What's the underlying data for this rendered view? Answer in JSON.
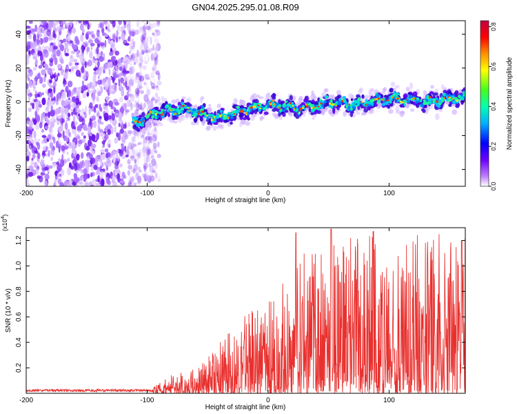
{
  "title": "GN04.2025.295.01.08.R09",
  "chart_data": [
    {
      "type": "heatmap",
      "xlabel": "Height of straight line (km)",
      "ylabel": "Frequency (Hz)",
      "xlim": [
        -200,
        163
      ],
      "ylim": [
        -50,
        48
      ],
      "xticks": [
        -200,
        -100,
        0,
        100
      ],
      "yticks": [
        -40,
        -20,
        0,
        20,
        40
      ],
      "ridge_trend": [
        {
          "x": -110,
          "y": -12
        },
        {
          "x": -90,
          "y": -6
        },
        {
          "x": -70,
          "y": -4
        },
        {
          "x": -40,
          "y": -10
        },
        {
          "x": -20,
          "y": -5
        },
        {
          "x": 0,
          "y": -2
        },
        {
          "x": 30,
          "y": -4
        },
        {
          "x": 50,
          "y": 0
        },
        {
          "x": 70,
          "y": -2
        },
        {
          "x": 100,
          "y": 2
        },
        {
          "x": 130,
          "y": 0
        },
        {
          "x": 163,
          "y": 3
        }
      ],
      "noise_region_x": [
        -200,
        -105
      ],
      "colorbar": {
        "label": "Normalized spectral amplitude",
        "range": [
          0.0,
          0.83
        ],
        "ticks": [
          "0.0",
          "0.2",
          "0.4",
          "0.6",
          "0.8"
        ]
      }
    },
    {
      "type": "line",
      "xlabel": "Height of straight line (km)",
      "ylabel": "SNR (10 * v/v)",
      "multiplier": "(x10",
      "multiplier_exp": "4",
      "multiplier_close": ")",
      "xlim": [
        -200,
        163
      ],
      "ylim": [
        0.0,
        1.3
      ],
      "xticks": [
        -200,
        -100,
        0,
        100
      ],
      "yticks": [
        "0.2",
        "0.4",
        "0.6",
        "0.8",
        "1.0",
        "1.2"
      ],
      "ytick_values": [
        0.2,
        0.4,
        0.6,
        0.8,
        1.0,
        1.2
      ],
      "color": "#e8312f",
      "envelope": [
        {
          "x": -200,
          "y": 0.03
        },
        {
          "x": -120,
          "y": 0.03
        },
        {
          "x": -95,
          "y": 0.05
        },
        {
          "x": -80,
          "y": 0.15
        },
        {
          "x": -60,
          "y": 0.2
        },
        {
          "x": -40,
          "y": 0.4
        },
        {
          "x": -20,
          "y": 0.6
        },
        {
          "x": 0,
          "y": 0.75
        },
        {
          "x": 25,
          "y": 1.1
        },
        {
          "x": 50,
          "y": 1.2
        },
        {
          "x": 80,
          "y": 1.25
        },
        {
          "x": 163,
          "y": 1.25
        }
      ],
      "peaks": [
        {
          "x": 23,
          "y": 1.26
        },
        {
          "x": 52,
          "y": 1.29
        },
        {
          "x": 87,
          "y": 1.27
        },
        {
          "x": 160,
          "y": 1.2
        }
      ]
    }
  ]
}
